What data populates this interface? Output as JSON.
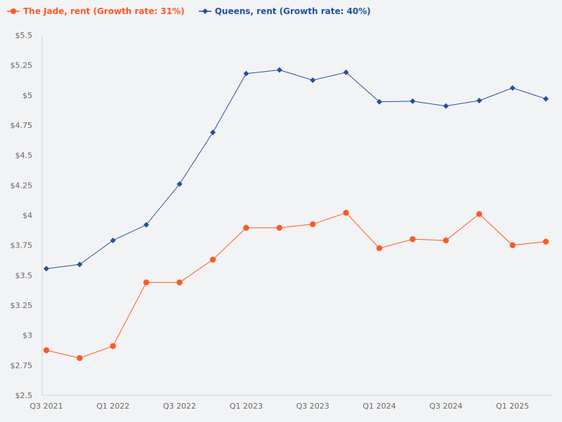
{
  "chart_data": {
    "type": "line",
    "title": "",
    "xlabel": "",
    "ylabel": "",
    "categories": [
      "Q3 2021",
      "Q4 2021",
      "Q1 2022",
      "Q2 2022",
      "Q3 2022",
      "Q4 2022",
      "Q1 2023",
      "Q2 2023",
      "Q3 2023",
      "Q4 2023",
      "Q1 2024",
      "Q2 2024",
      "Q3 2024",
      "Q4 2024",
      "Q1 2025",
      "Q2 2025"
    ],
    "x_tick_labels": [
      "Q3 2021",
      "Q1 2022",
      "Q3 2022",
      "Q1 2023",
      "Q3 2023",
      "Q1 2024",
      "Q3 2024",
      "Q1 2025"
    ],
    "ylim": [
      2.5,
      5.5
    ],
    "y_tick_labels": [
      "$2.5",
      "$2.75",
      "$3",
      "$3.25",
      "$3.5",
      "$3.75",
      "$4",
      "$4.25",
      "$4.5",
      "$4.75",
      "$5",
      "$5.25",
      "$5.5"
    ],
    "grid": false,
    "legend_position": "top-left",
    "series": [
      {
        "name": "The Jade, rent (Growth rate: 31%)",
        "color": "#fc5a24",
        "marker": "circle",
        "values": [
          2.875,
          2.81,
          2.91,
          3.44,
          3.44,
          3.63,
          3.895,
          3.895,
          3.925,
          4.02,
          3.725,
          3.8,
          3.79,
          4.01,
          3.75,
          3.78
        ]
      },
      {
        "name": "Queens, rent (Growth rate: 40%)",
        "color": "#2450a0",
        "marker": "diamond",
        "values": [
          3.555,
          3.59,
          3.79,
          3.92,
          4.26,
          4.69,
          5.18,
          5.21,
          5.125,
          5.19,
          4.945,
          4.95,
          4.91,
          4.955,
          5.06,
          4.97
        ]
      }
    ]
  }
}
